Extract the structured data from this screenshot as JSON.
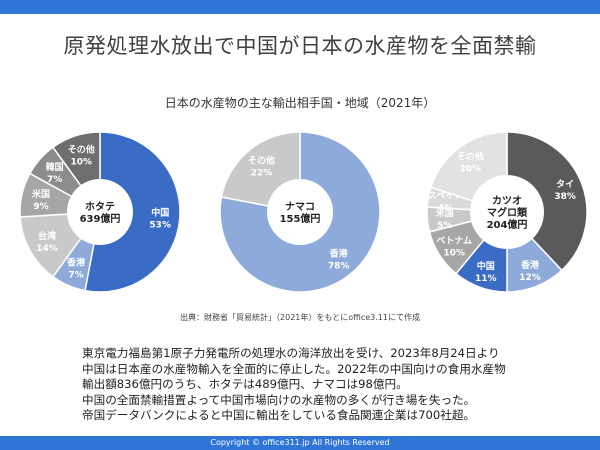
{
  "header": {
    "title": "原発処理水放出で中国が日本の水産物を全面禁輸"
  },
  "chart_data": {
    "title": "日本の水産物の主な輸出相手国・地域（2021年）",
    "charts": [
      {
        "type": "pie",
        "center_label": [
          "ホタテ",
          "639億円"
        ],
        "slices": [
          {
            "name": "中国",
            "value": 53,
            "label": "53%",
            "color": "#3a6cc6",
            "text_color": "#ffffff"
          },
          {
            "name": "香港",
            "value": 7,
            "label": "7%",
            "color": "#8eaadb",
            "text_color": "#ffffff"
          },
          {
            "name": "台湾",
            "value": 14,
            "label": "14%",
            "color": "#c9c9c9",
            "text_color": "#ffffff"
          },
          {
            "name": "米国",
            "value": 9,
            "label": "9%",
            "color": "#a6a6a6",
            "text_color": "#ffffff"
          },
          {
            "name": "韓国",
            "value": 7,
            "label": "7%",
            "color": "#8c8c8c",
            "text_color": "#ffffff"
          },
          {
            "name": "その他",
            "value": 10,
            "label": "10%",
            "color": "#6e6e6e",
            "text_color": "#ffffff"
          }
        ]
      },
      {
        "type": "pie",
        "center_label": [
          "ナマコ",
          "155億円"
        ],
        "slices": [
          {
            "name": "香港",
            "value": 78,
            "label": "78%",
            "color": "#8eaadb",
            "text_color": "#ffffff"
          },
          {
            "name": "その他",
            "value": 22,
            "label": "22%",
            "color": "#c9c9c9",
            "text_color": "#ffffff"
          }
        ]
      },
      {
        "type": "pie",
        "center_label": [
          "カツオ",
          "マグロ類",
          "204億円"
        ],
        "slices": [
          {
            "name": "タイ",
            "value": 38,
            "label": "38%",
            "color": "#5a5a5a",
            "text_color": "#ffffff"
          },
          {
            "name": "香港",
            "value": 12,
            "label": "12%",
            "color": "#8eaadb",
            "text_color": "#ffffff"
          },
          {
            "name": "中国",
            "value": 11,
            "label": "11%",
            "color": "#3a6cc6",
            "text_color": "#ffffff"
          },
          {
            "name": "ベトナム",
            "value": 10,
            "label": "10%",
            "color": "#a6a6a6",
            "text_color": "#ffffff"
          },
          {
            "name": "米国",
            "value": 5,
            "label": "5%",
            "color": "#c9c9c9",
            "text_color": "#ffffff"
          },
          {
            "name": "スペイン",
            "value": 4,
            "label": "4%",
            "color": "#dadada",
            "text_color": "#ffffff"
          },
          {
            "name": "その他",
            "value": 20,
            "label": "20%",
            "color": "#e2e2e2",
            "text_color": "#ffffff"
          }
        ]
      }
    ]
  },
  "source": "出典：財務省「貿易統計」（2021年）をもとにoffice3.11にて作成",
  "body": [
    "東京電力福島第1原子力発電所の処理水の海洋放出を受け、2023年8月24日より",
    "中国は日本産の水産物輸入を全面的に停止した。2022年の中国向けの食用水産物",
    "輸出額836億円のうち、ホタテは489億円、ナマコは98億円。",
    "中国の全面禁輸措置よって中国市場向けの水産物の多くが行き場を失った。",
    "帝国データバンクによると中国に輸出をしている食品関連企業は700社超。"
  ],
  "footer": "Copyright © office311.jp All Rights Reserved"
}
